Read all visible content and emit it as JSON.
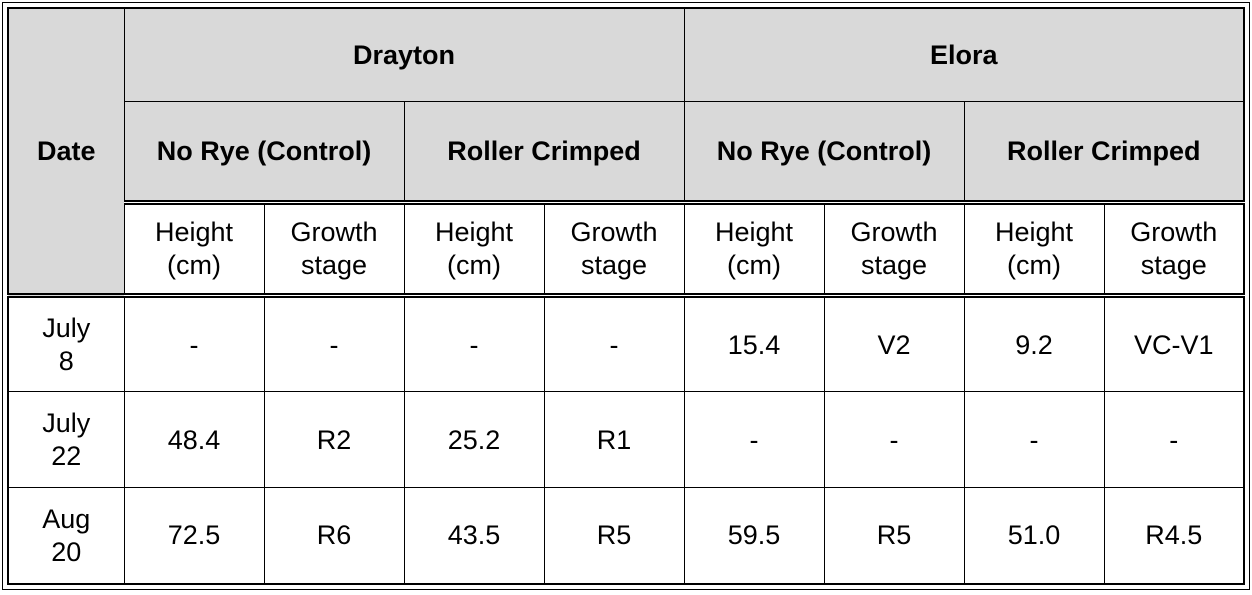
{
  "table": {
    "corner_label": "Date",
    "locations": [
      {
        "name": "Drayton"
      },
      {
        "name": "Elora"
      }
    ],
    "treatments": {
      "control": "No Rye (Control)",
      "crimped": "Roller Crimped"
    },
    "metrics": {
      "height": "Height\n(cm)",
      "growth": "Growth\nstage"
    },
    "rows": [
      {
        "date": "July\n8",
        "values": [
          "-",
          "-",
          "-",
          "-",
          "15.4",
          "V2",
          "9.2",
          "VC-V1"
        ]
      },
      {
        "date": "July\n22",
        "values": [
          "48.4",
          "R2",
          "25.2",
          "R1",
          "-",
          "-",
          "-",
          "-"
        ]
      },
      {
        "date": "Aug\n20",
        "values": [
          "72.5",
          "R6",
          "43.5",
          "R5",
          "59.5",
          "R5",
          "51.0",
          "R4.5"
        ]
      }
    ],
    "colors": {
      "header_bg": "#d9d9d9",
      "border": "#000000",
      "body_bg": "#ffffff"
    }
  }
}
